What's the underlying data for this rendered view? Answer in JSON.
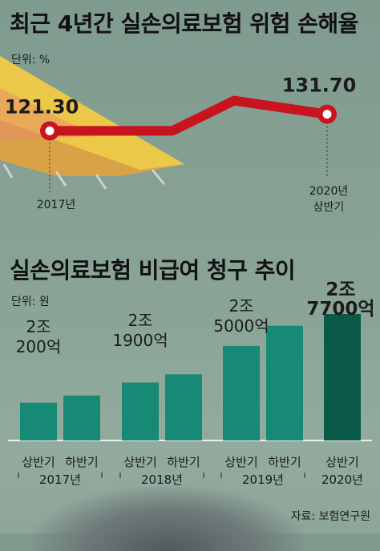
{
  "colors": {
    "line": "#c8141e",
    "bar": "#168a74",
    "bar_highlight": "#0b5a48"
  },
  "chart_data": [
    {
      "type": "line",
      "title": "최근 4년간 실손의료보험 위험 손해율",
      "unit": "단위: %",
      "x": [
        "2017년",
        "2020년 상반기"
      ],
      "x_tick_labels": [
        [
          "2017년"
        ],
        [
          "2020년",
          "상반기"
        ]
      ],
      "values": [
        121.3,
        131.7
      ],
      "value_labels": [
        "121.30",
        "131.70"
      ]
    },
    {
      "type": "bar",
      "title": "실손의료보험 비급여 청구 추이",
      "unit": "단위: 원",
      "categories": [
        "2017년 상반기",
        "2017년 하반기",
        "2018년 상반기",
        "2018년 하반기",
        "2019년 상반기",
        "2019년 하반기",
        "2020년 상반기"
      ],
      "values": [
        20200,
        null,
        21900,
        null,
        25000,
        null,
        27700
      ],
      "groups": [
        {
          "period_labels": [
            "상반기",
            "하반기"
          ],
          "year_label": "2017년",
          "value_label": [
            "2조",
            "200억"
          ]
        },
        {
          "period_labels": [
            "상반기",
            "하반기"
          ],
          "year_label": "2018년",
          "value_label": [
            "2조",
            "1900억"
          ]
        },
        {
          "period_labels": [
            "상반기",
            "하반기"
          ],
          "year_label": "2019년",
          "value_label": [
            "2조",
            "5000억"
          ]
        },
        {
          "period_labels": [
            "상반기"
          ],
          "year_label": "2020년",
          "value_label": [
            "2조",
            "7700억"
          ]
        }
      ]
    }
  ],
  "source": "자료: 보험연구원"
}
